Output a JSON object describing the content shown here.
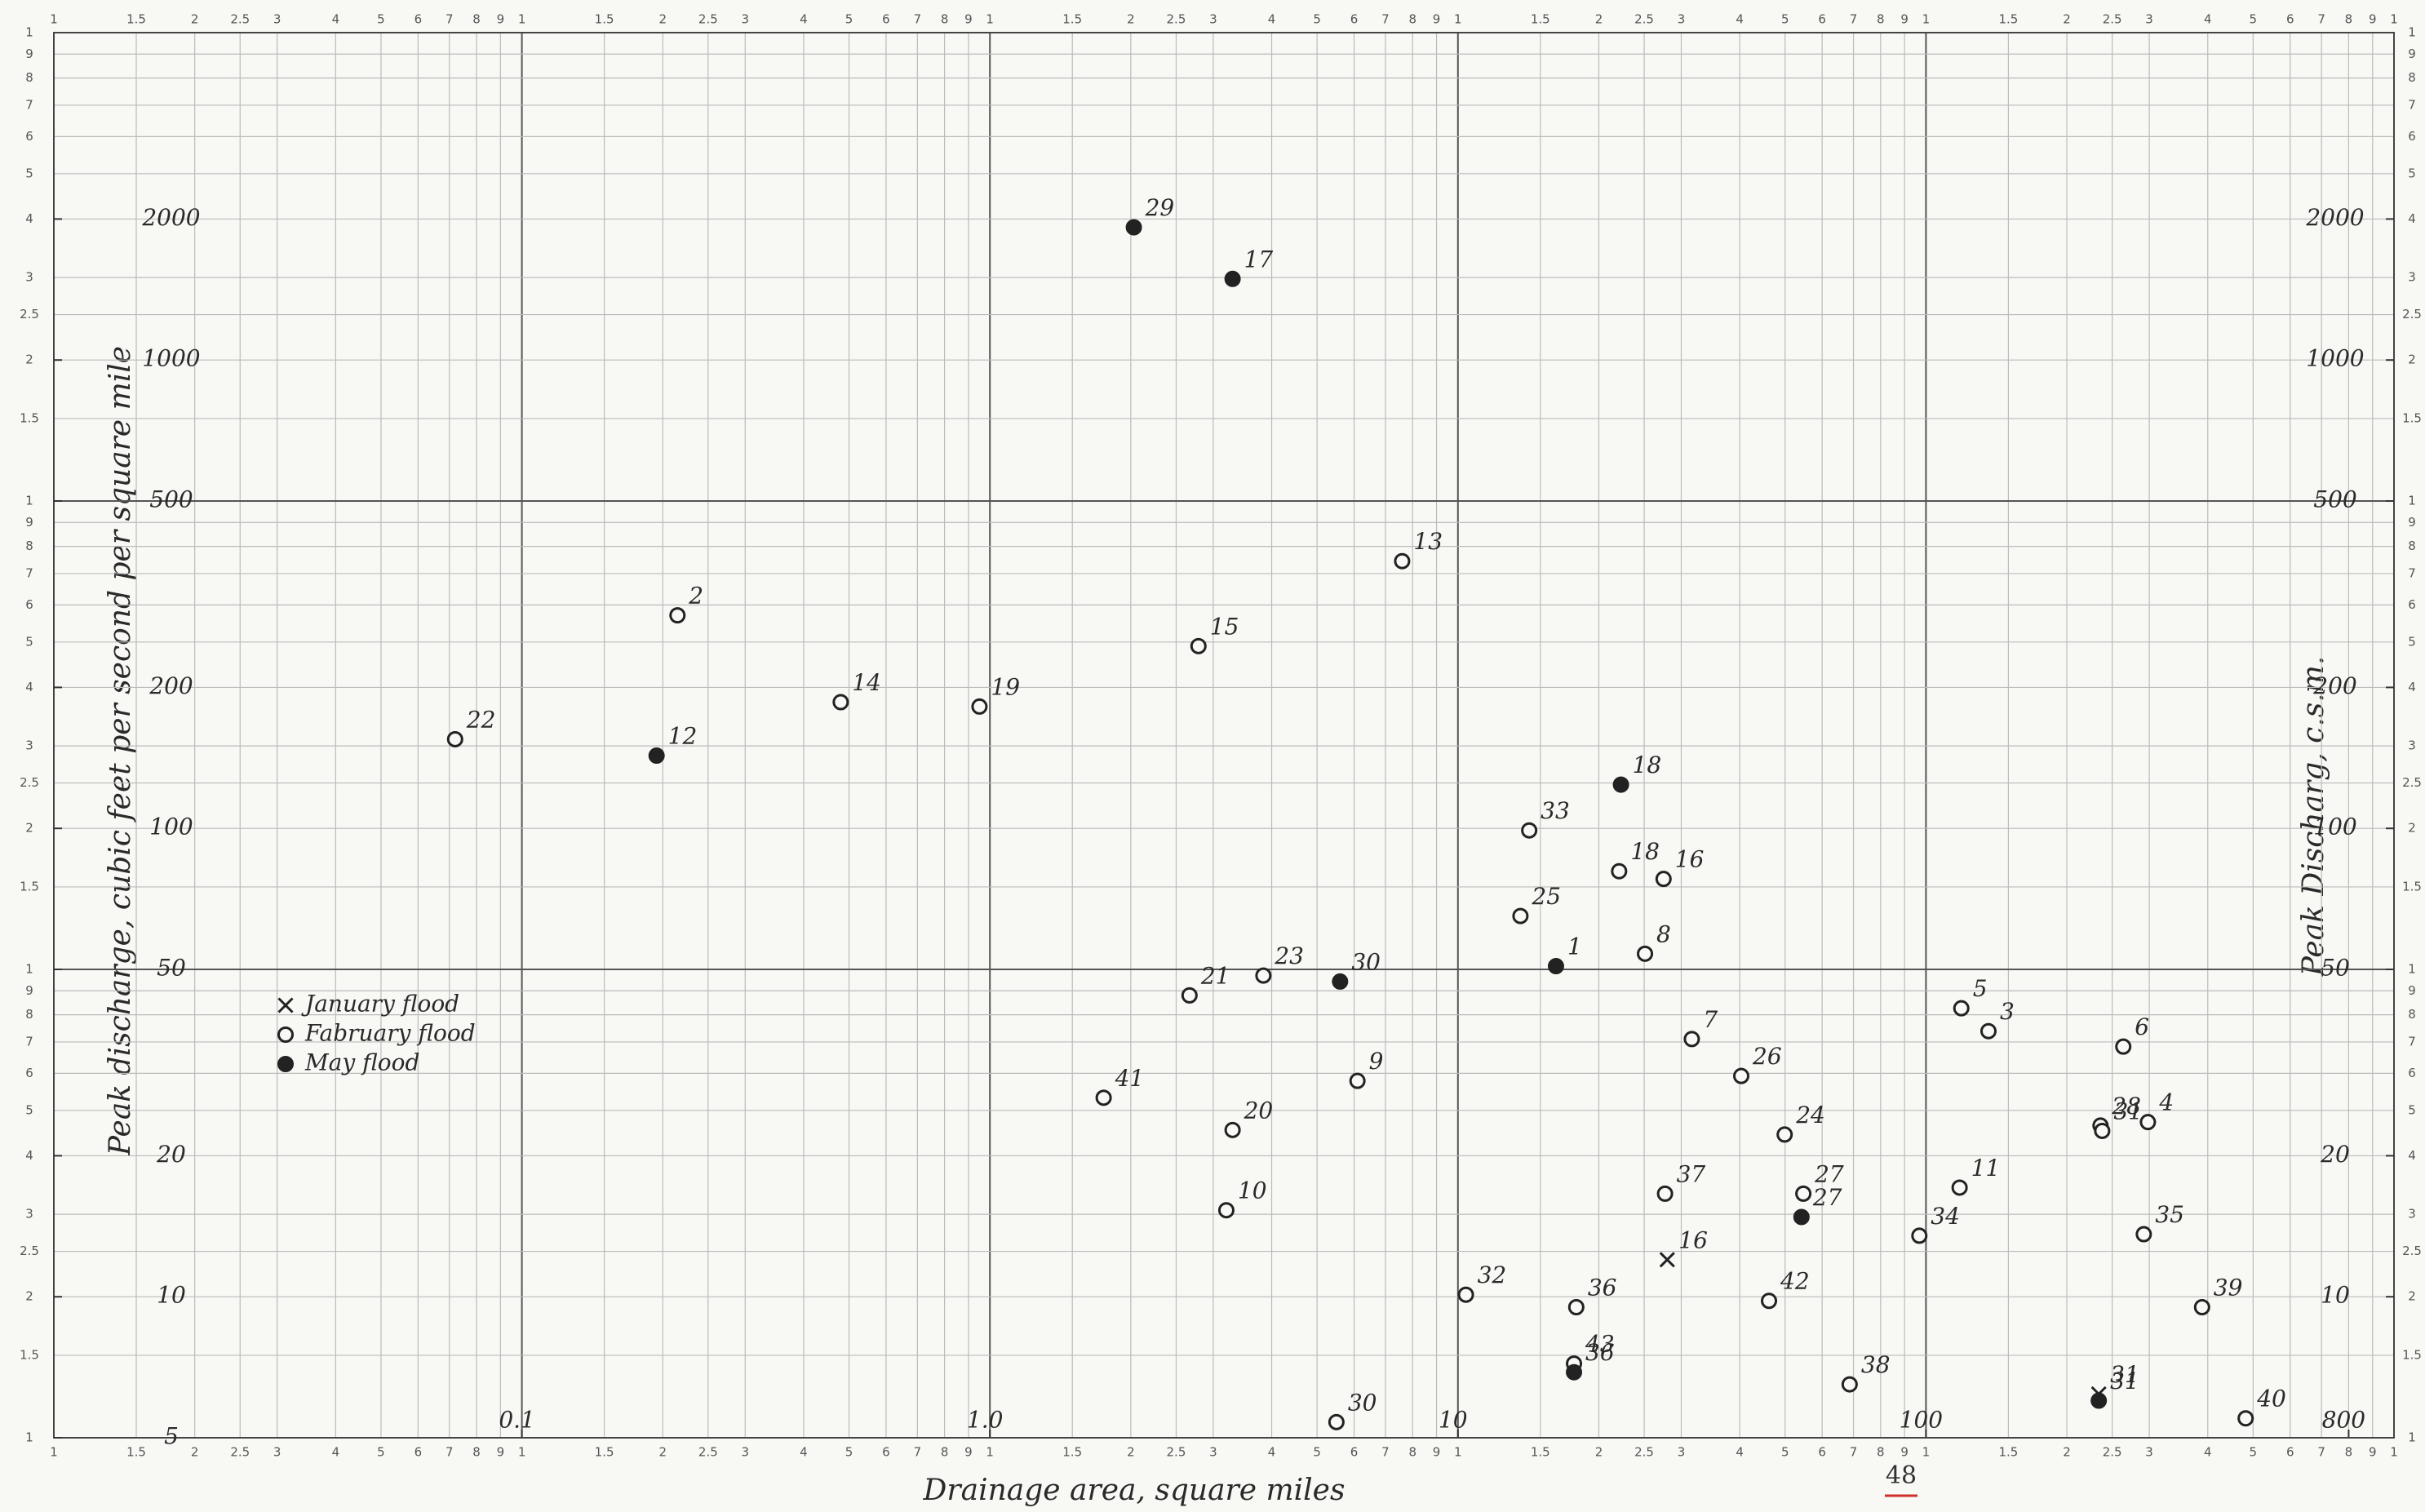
{
  "chart_data": {
    "type": "scatter",
    "x_label": "Drainage area, square miles",
    "y_label": "Peak discharge, cubic feet per second per square mile",
    "y2_label": "Peak Discharg, c.s.m.",
    "xscale": "log",
    "yscale": "log",
    "xlim": [
      0.01,
      1000
    ],
    "ylim": [
      5,
      5000
    ],
    "y2lim": [
      5,
      5000
    ],
    "xticks": [
      0.1,
      {
        "value": 1,
        "label": "1.0"
      },
      10,
      100,
      800
    ],
    "yticks": [
      5,
      10,
      20,
      50,
      100,
      200,
      500,
      1000,
      2000
    ],
    "y2ticks": [
      10,
      20,
      50,
      100,
      200,
      500,
      1000,
      2000
    ],
    "grid": true,
    "legend": "left",
    "paper_cycle": [
      {
        "value": 1,
        "label": "1"
      },
      {
        "value": 1.5,
        "label": "1.5"
      },
      {
        "value": 2,
        "label": "2"
      },
      {
        "value": 2.5,
        "label": "2.5"
      },
      {
        "value": 3,
        "label": "3"
      },
      {
        "value": 4,
        "label": "4"
      },
      {
        "value": 5,
        "label": "5"
      },
      {
        "value": 6,
        "label": "6"
      },
      {
        "value": 7,
        "label": "7"
      },
      {
        "value": 8,
        "label": "8"
      },
      {
        "value": 9,
        "label": "9"
      }
    ],
    "series": [
      {
        "name": "January flood",
        "marker": "x",
        "color": "#222222",
        "x": [
          28.0,
          234
        ],
        "values": [
          12.0,
          6.2
        ],
        "labels": [
          "16",
          "31"
        ]
      },
      {
        "name": "Fabruary flood",
        "marker": "open",
        "color": "#222222",
        "x": [
          0.072,
          0.215,
          0.48,
          0.95,
          2.79,
          7.6,
          2.67,
          3.84,
          1.75,
          3.3,
          3.2,
          6.1,
          5.5,
          10.4,
          14.2,
          13.6,
          22.1,
          27.5,
          25.1,
          31.6,
          40.3,
          49.9,
          27.7,
          54.7,
          17.9,
          17.7,
          46.2,
          68.7,
          96.8,
          119,
          136,
          118,
          264,
          236,
          238,
          298,
          292,
          389,
          482
        ],
        "values": [
          155,
          285,
          186,
          182,
          245,
          372,
          44,
          48.5,
          26.6,
          22.7,
          15.3,
          28.9,
          5.4,
          10.1,
          99,
          65,
          81,
          78,
          54,
          35.5,
          29.6,
          22.2,
          16.6,
          16.6,
          9.5,
          7.2,
          9.8,
          6.5,
          13.5,
          41.3,
          36.9,
          17.1,
          34.2,
          23.2,
          22.6,
          23.6,
          13.6,
          9.5,
          5.5
        ],
        "labels": [
          "22",
          "2",
          "14",
          "19",
          "15",
          "13",
          "21",
          "23",
          "41",
          "20",
          "10",
          "9",
          "30",
          "32",
          "33",
          "25",
          "18",
          "16",
          "8",
          "7",
          "26",
          "24",
          "37",
          "27",
          "36",
          "43",
          "42",
          "38",
          "34",
          "5",
          "3",
          "11",
          "6",
          "28",
          "31",
          "4",
          "35",
          "39",
          "40"
        ]
      },
      {
        "name": "May flood",
        "marker": "filled",
        "color": "#222222",
        "x": [
          2.03,
          3.3,
          0.194,
          5.6,
          16.2,
          22.3,
          54.2,
          17.7,
          234
        ],
        "values": [
          1920,
          1490,
          143,
          47.1,
          50.8,
          124,
          14.8,
          6.9,
          6.0
        ],
        "labels": [
          "29",
          "17",
          "12",
          "30",
          "1",
          "18",
          "27",
          "36",
          "31"
        ]
      }
    ]
  },
  "page_number": "48"
}
